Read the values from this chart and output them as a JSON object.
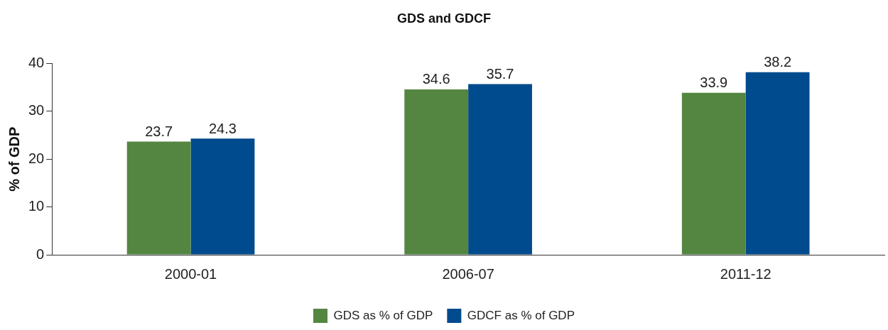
{
  "chart_data": {
    "type": "bar",
    "title": "GDS and GDCF",
    "ylabel": "% of GDP",
    "categories": [
      "2000-01",
      "2006-07",
      "2011-12"
    ],
    "series": [
      {
        "name": "GDS as % of GDP",
        "color": "#548642",
        "values": [
          23.7,
          34.6,
          33.9
        ]
      },
      {
        "name": "GDCF as % of GDP",
        "color": "#004b8d",
        "values": [
          24.3,
          35.7,
          38.2
        ]
      }
    ],
    "ylim": [
      0,
      40
    ],
    "yticks": [
      0,
      10,
      20,
      30,
      40
    ],
    "grid": false,
    "legend": "bottom",
    "data_labels": true
  }
}
